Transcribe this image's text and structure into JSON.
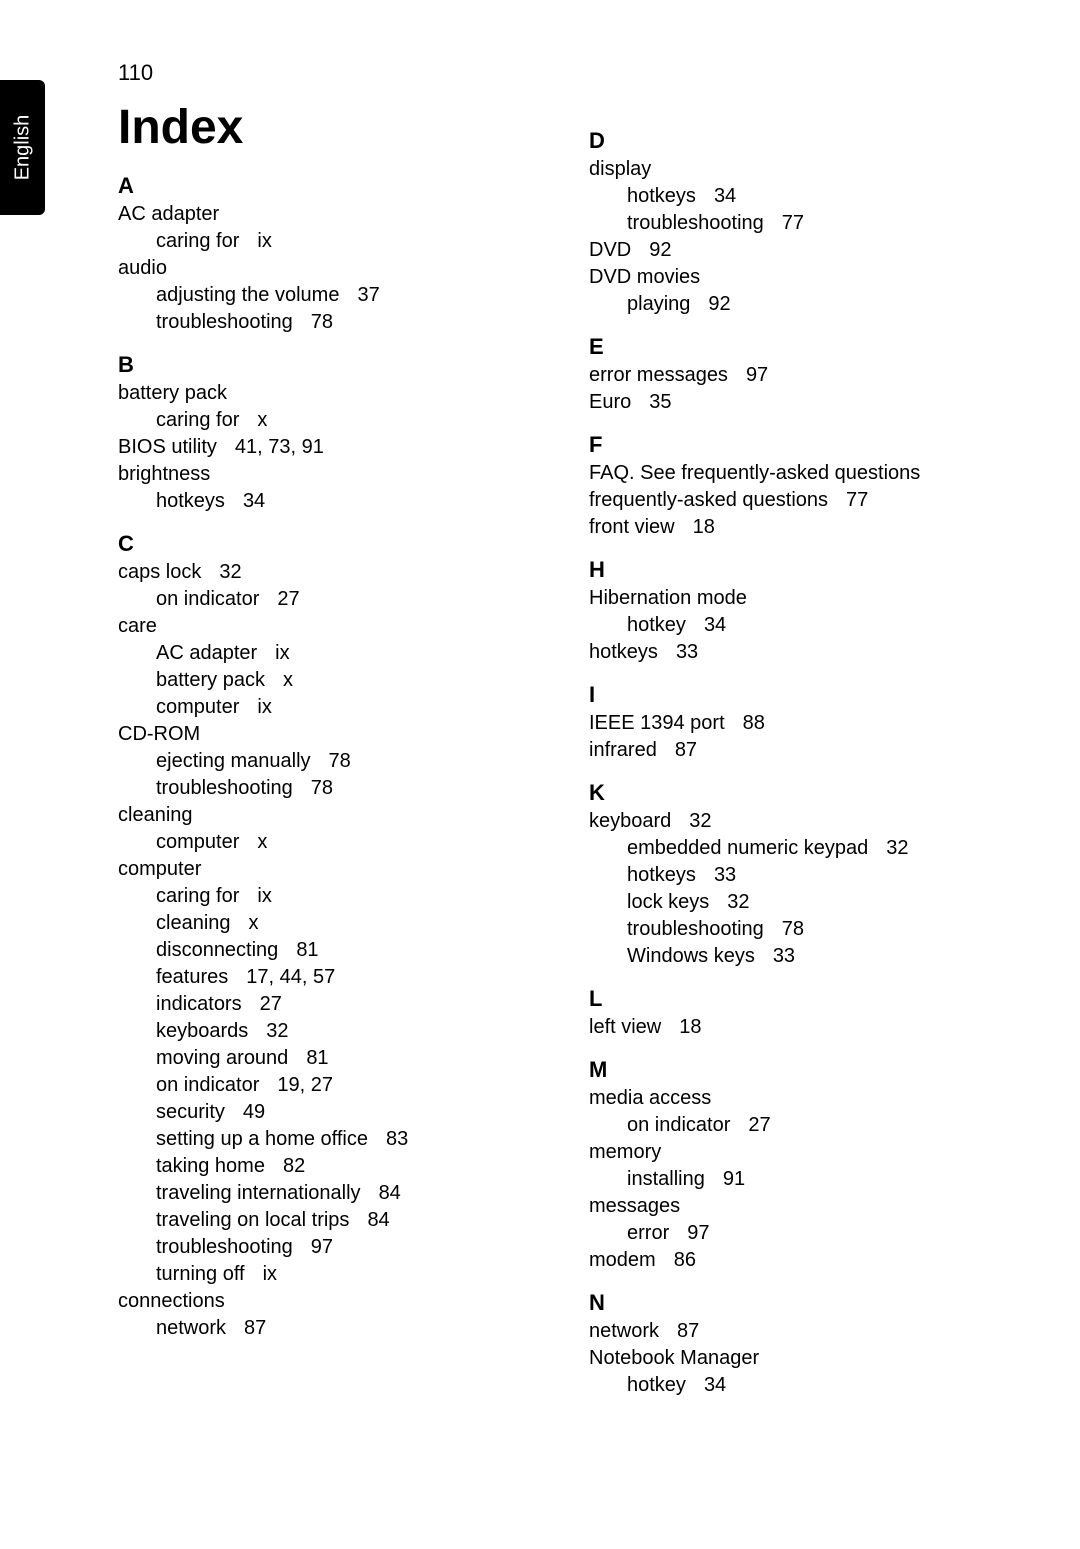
{
  "page_number": "110",
  "side_tab": "English",
  "title": "Index",
  "typography": {
    "title_fontsize": 48,
    "letter_fontsize": 22,
    "entry_fontsize": 20,
    "side_tab_fontsize": 20,
    "page_number_fontsize": 22,
    "text_color": "#000000",
    "background_color": "#ffffff",
    "tab_bg": "#000000",
    "tab_fg": "#ffffff"
  },
  "col1": {
    "A": {
      "letter": "A",
      "e1": {
        "term": "AC adapter"
      },
      "e1a": {
        "term": "caring for",
        "pages": "ix"
      },
      "e2": {
        "term": "audio"
      },
      "e2a": {
        "term": "adjusting the volume",
        "pages": "37"
      },
      "e2b": {
        "term": "troubleshooting",
        "pages": "78"
      }
    },
    "B": {
      "letter": "B",
      "e1": {
        "term": "battery pack"
      },
      "e1a": {
        "term": "caring for",
        "pages": "x"
      },
      "e2": {
        "term": "BIOS utility",
        "pages": "41,    73,    91"
      },
      "e3": {
        "term": "brightness"
      },
      "e3a": {
        "term": "hotkeys",
        "pages": "34"
      }
    },
    "C": {
      "letter": "C",
      "e1": {
        "term": "caps lock",
        "pages": "32"
      },
      "e1a": {
        "term": "on indicator",
        "pages": "27"
      },
      "e2": {
        "term": "care"
      },
      "e2a": {
        "term": "AC adapter",
        "pages": "ix"
      },
      "e2b": {
        "term": "battery pack",
        "pages": "x"
      },
      "e2c": {
        "term": "computer",
        "pages": "ix"
      },
      "e3": {
        "term": "CD-ROM"
      },
      "e3a": {
        "term": "ejecting manually",
        "pages": "78"
      },
      "e3b": {
        "term": "troubleshooting",
        "pages": "78"
      },
      "e4": {
        "term": "cleaning"
      },
      "e4a": {
        "term": "computer",
        "pages": "x"
      },
      "e5": {
        "term": "computer"
      },
      "e5a": {
        "term": "caring for",
        "pages": "ix"
      },
      "e5b": {
        "term": "cleaning",
        "pages": "x"
      },
      "e5c": {
        "term": "disconnecting",
        "pages": "81"
      },
      "e5d": {
        "term": "features",
        "pages": "17,    44,    57"
      },
      "e5e": {
        "term": "indicators",
        "pages": "27"
      },
      "e5f": {
        "term": "keyboards",
        "pages": "32"
      },
      "e5g": {
        "term": "moving around",
        "pages": "81"
      },
      "e5h": {
        "term": "on indicator",
        "pages": "19,    27"
      },
      "e5i": {
        "term": "security",
        "pages": "49"
      },
      "e5j": {
        "term": "setting up a home office",
        "pages": "83"
      },
      "e5k": {
        "term": "taking home",
        "pages": "82"
      },
      "e5l": {
        "term": "traveling internationally",
        "pages": "84"
      },
      "e5m": {
        "term": "traveling on local trips",
        "pages": "84"
      },
      "e5n": {
        "term": "troubleshooting",
        "pages": "97"
      },
      "e5o": {
        "term": "turning off",
        "pages": "ix"
      },
      "e6": {
        "term": "connections"
      },
      "e6a": {
        "term": "network",
        "pages": "87"
      }
    }
  },
  "col2": {
    "D": {
      "letter": "D",
      "e1": {
        "term": "display"
      },
      "e1a": {
        "term": "hotkeys",
        "pages": "34"
      },
      "e1b": {
        "term": "troubleshooting",
        "pages": "77"
      },
      "e2": {
        "term": "DVD",
        "pages": "92"
      },
      "e3": {
        "term": "DVD movies"
      },
      "e3a": {
        "term": "playing",
        "pages": "92"
      }
    },
    "E": {
      "letter": "E",
      "e1": {
        "term": "error messages",
        "pages": "97"
      },
      "e2": {
        "term": "Euro",
        "pages": "35"
      }
    },
    "F": {
      "letter": "F",
      "e1": {
        "term": "FAQ. See frequently-asked questions"
      },
      "e2": {
        "term": "frequently-asked questions",
        "pages": "77"
      },
      "e3": {
        "term": "front view",
        "pages": "18"
      }
    },
    "H": {
      "letter": "H",
      "e1": {
        "term": "Hibernation mode"
      },
      "e1a": {
        "term": "hotkey",
        "pages": "34"
      },
      "e2": {
        "term": "hotkeys",
        "pages": "33"
      }
    },
    "I": {
      "letter": "I",
      "e1": {
        "term": "IEEE 1394 port",
        "pages": "88"
      },
      "e2": {
        "term": "infrared",
        "pages": "87"
      }
    },
    "K": {
      "letter": "K",
      "e1": {
        "term": "keyboard",
        "pages": "32"
      },
      "e1a": {
        "term": "embedded numeric keypad",
        "pages": "32"
      },
      "e1b": {
        "term": "hotkeys",
        "pages": "33"
      },
      "e1c": {
        "term": "lock keys",
        "pages": "32"
      },
      "e1d": {
        "term": "troubleshooting",
        "pages": "78"
      },
      "e1e": {
        "term": "Windows keys",
        "pages": "33"
      }
    },
    "L": {
      "letter": "L",
      "e1": {
        "term": "left view",
        "pages": "18"
      }
    },
    "M": {
      "letter": "M",
      "e1": {
        "term": "media access"
      },
      "e1a": {
        "term": "on indicator",
        "pages": "27"
      },
      "e2": {
        "term": "memory"
      },
      "e2a": {
        "term": "installing",
        "pages": "91"
      },
      "e3": {
        "term": "messages"
      },
      "e3a": {
        "term": "error",
        "pages": "97"
      },
      "e4": {
        "term": "modem",
        "pages": "86"
      }
    },
    "N": {
      "letter": "N",
      "e1": {
        "term": "network",
        "pages": "87"
      },
      "e2": {
        "term": "Notebook Manager"
      },
      "e2a": {
        "term": "hotkey",
        "pages": "34"
      }
    }
  }
}
